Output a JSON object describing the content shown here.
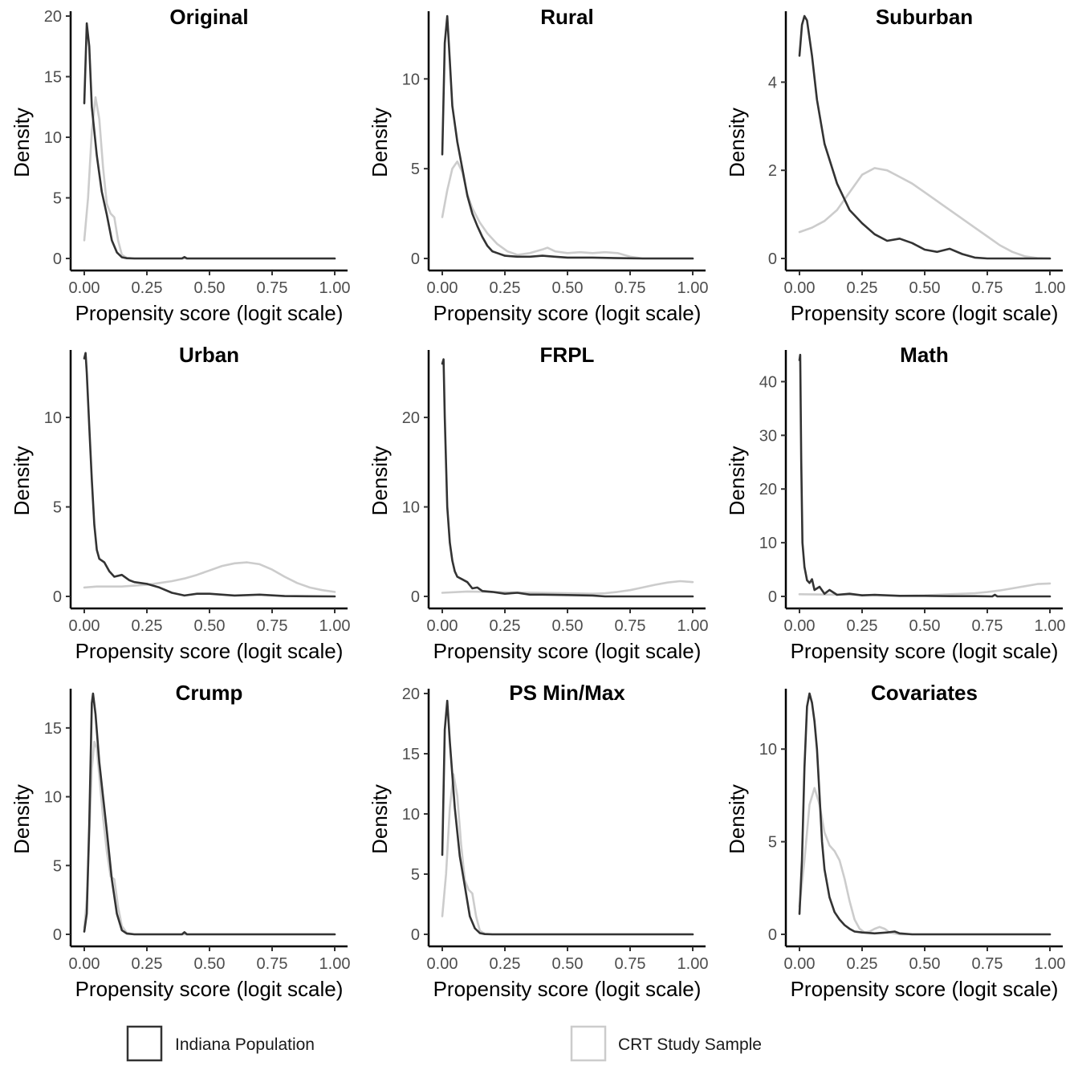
{
  "chart_data": [
    {
      "type": "line",
      "title": "Original",
      "xlabel": "Propensity score (logit scale)",
      "ylabel": "Density",
      "xlim": [
        0,
        1
      ],
      "ylim": [
        0,
        20
      ],
      "xticks": [
        "0.00",
        "0.25",
        "0.50",
        "0.75",
        "1.00"
      ],
      "yticks": [
        0,
        5,
        10,
        15,
        20
      ],
      "series": [
        {
          "name": "Indiana Population",
          "color": "#333333",
          "x": [
            0.0,
            0.01,
            0.02,
            0.03,
            0.05,
            0.07,
            0.09,
            0.11,
            0.13,
            0.15,
            0.17,
            0.2,
            0.3,
            0.39,
            0.4,
            0.41,
            0.5,
            1.0
          ],
          "y": [
            12.8,
            19.4,
            17.5,
            12.5,
            8.5,
            5.5,
            3.6,
            1.5,
            0.5,
            0.1,
            0.02,
            0.0,
            0.0,
            0.0,
            0.12,
            0.0,
            0.0,
            0.0
          ]
        },
        {
          "name": "CRT Study Sample",
          "color": "#cccccc",
          "x": [
            0.0,
            0.015,
            0.03,
            0.045,
            0.06,
            0.075,
            0.09,
            0.105,
            0.12,
            0.135,
            0.15,
            0.17,
            0.2,
            0.3,
            1.0
          ],
          "y": [
            1.5,
            5.0,
            10.5,
            13.3,
            11.5,
            7.5,
            4.5,
            3.7,
            3.4,
            1.5,
            0.3,
            0.05,
            0.0,
            0.0,
            0.0
          ]
        }
      ]
    },
    {
      "type": "line",
      "title": "Rural",
      "xlabel": "Propensity score (logit scale)",
      "ylabel": "Density",
      "xlim": [
        0,
        1
      ],
      "ylim": [
        0,
        13.5
      ],
      "xticks": [
        "0.00",
        "0.25",
        "0.50",
        "0.75",
        "1.00"
      ],
      "yticks": [
        0,
        5,
        10
      ],
      "series": [
        {
          "name": "Indiana Population",
          "color": "#333333",
          "x": [
            0.0,
            0.01,
            0.02,
            0.03,
            0.04,
            0.06,
            0.08,
            0.1,
            0.12,
            0.14,
            0.16,
            0.18,
            0.2,
            0.22,
            0.25,
            0.3,
            0.35,
            0.4,
            0.45,
            0.5,
            0.6,
            0.7,
            0.8,
            1.0
          ],
          "y": [
            5.8,
            12.0,
            13.5,
            11.0,
            8.5,
            6.5,
            5.0,
            3.5,
            2.5,
            1.8,
            1.2,
            0.7,
            0.4,
            0.3,
            0.15,
            0.1,
            0.1,
            0.15,
            0.1,
            0.05,
            0.05,
            0.02,
            0.0,
            0.0
          ]
        },
        {
          "name": "CRT Study Sample",
          "color": "#cccccc",
          "x": [
            0.0,
            0.02,
            0.04,
            0.06,
            0.08,
            0.1,
            0.12,
            0.15,
            0.18,
            0.22,
            0.26,
            0.3,
            0.35,
            0.4,
            0.42,
            0.45,
            0.5,
            0.55,
            0.6,
            0.65,
            0.7,
            0.75,
            0.8,
            1.0
          ],
          "y": [
            2.3,
            3.8,
            5.0,
            5.4,
            4.8,
            3.6,
            2.8,
            2.0,
            1.4,
            0.8,
            0.4,
            0.2,
            0.3,
            0.5,
            0.6,
            0.4,
            0.3,
            0.35,
            0.3,
            0.35,
            0.3,
            0.1,
            0.0,
            0.0
          ]
        }
      ]
    },
    {
      "type": "line",
      "title": "Suburban",
      "xlabel": "Propensity score (logit scale)",
      "ylabel": "Density",
      "xlim": [
        0,
        1
      ],
      "ylim": [
        0,
        5.5
      ],
      "xticks": [
        "0.00",
        "0.25",
        "0.50",
        "0.75",
        "1.00"
      ],
      "yticks": [
        0,
        2,
        4
      ],
      "series": [
        {
          "name": "Indiana Population",
          "color": "#333333",
          "x": [
            0.0,
            0.01,
            0.02,
            0.03,
            0.05,
            0.07,
            0.1,
            0.15,
            0.2,
            0.25,
            0.3,
            0.35,
            0.4,
            0.45,
            0.5,
            0.55,
            0.6,
            0.65,
            0.7,
            0.75,
            0.8,
            1.0
          ],
          "y": [
            4.6,
            5.3,
            5.5,
            5.4,
            4.6,
            3.6,
            2.6,
            1.7,
            1.1,
            0.8,
            0.55,
            0.4,
            0.45,
            0.35,
            0.2,
            0.15,
            0.22,
            0.1,
            0.02,
            0.0,
            0.0,
            0.0
          ]
        },
        {
          "name": "CRT Study Sample",
          "color": "#cccccc",
          "x": [
            0.0,
            0.05,
            0.1,
            0.15,
            0.2,
            0.25,
            0.3,
            0.35,
            0.4,
            0.45,
            0.5,
            0.55,
            0.6,
            0.65,
            0.7,
            0.75,
            0.8,
            0.85,
            0.9,
            0.95,
            1.0
          ],
          "y": [
            0.6,
            0.7,
            0.85,
            1.1,
            1.5,
            1.9,
            2.05,
            2.0,
            1.85,
            1.7,
            1.5,
            1.3,
            1.1,
            0.9,
            0.7,
            0.5,
            0.3,
            0.15,
            0.05,
            0.01,
            0.0
          ]
        }
      ]
    },
    {
      "type": "line",
      "title": "Urban",
      "xlabel": "Propensity score (logit scale)",
      "ylabel": "Density",
      "xlim": [
        0,
        1
      ],
      "ylim": [
        0,
        13.5
      ],
      "xticks": [
        "0.00",
        "0.25",
        "0.50",
        "0.75",
        "1.00"
      ],
      "yticks": [
        0,
        5,
        10
      ],
      "series": [
        {
          "name": "Indiana Population",
          "color": "#333333",
          "x": [
            0.0,
            0.005,
            0.01,
            0.02,
            0.03,
            0.04,
            0.05,
            0.06,
            0.08,
            0.1,
            0.12,
            0.15,
            0.18,
            0.2,
            0.25,
            0.3,
            0.35,
            0.4,
            0.45,
            0.5,
            0.6,
            0.7,
            0.8,
            1.0
          ],
          "y": [
            13.3,
            13.6,
            12.5,
            9.5,
            6.5,
            4.0,
            2.6,
            2.1,
            1.9,
            1.4,
            1.1,
            1.2,
            0.9,
            0.8,
            0.7,
            0.5,
            0.2,
            0.05,
            0.15,
            0.15,
            0.05,
            0.1,
            0.02,
            0.0
          ]
        },
        {
          "name": "CRT Study Sample",
          "color": "#cccccc",
          "x": [
            0.0,
            0.05,
            0.1,
            0.15,
            0.2,
            0.25,
            0.3,
            0.35,
            0.4,
            0.45,
            0.5,
            0.55,
            0.6,
            0.65,
            0.7,
            0.75,
            0.8,
            0.85,
            0.9,
            0.95,
            1.0
          ],
          "y": [
            0.5,
            0.55,
            0.55,
            0.55,
            0.6,
            0.65,
            0.75,
            0.85,
            1.0,
            1.2,
            1.45,
            1.7,
            1.85,
            1.9,
            1.8,
            1.5,
            1.1,
            0.75,
            0.5,
            0.35,
            0.25
          ]
        }
      ]
    },
    {
      "type": "line",
      "title": "FRPL",
      "xlabel": "Propensity score (logit scale)",
      "ylabel": "Density",
      "xlim": [
        0,
        1
      ],
      "ylim": [
        0,
        27
      ],
      "xticks": [
        "0.00",
        "0.25",
        "0.50",
        "0.75",
        "1.00"
      ],
      "yticks": [
        0,
        10,
        20
      ],
      "series": [
        {
          "name": "Indiana Population",
          "color": "#333333",
          "x": [
            0.0,
            0.005,
            0.01,
            0.02,
            0.03,
            0.04,
            0.05,
            0.06,
            0.08,
            0.1,
            0.12,
            0.14,
            0.16,
            0.2,
            0.25,
            0.3,
            0.35,
            0.4,
            0.5,
            0.6,
            0.65,
            1.0
          ],
          "y": [
            26.0,
            26.5,
            20.0,
            10.0,
            6.0,
            4.0,
            2.8,
            2.2,
            1.9,
            1.6,
            0.9,
            1.0,
            0.6,
            0.5,
            0.3,
            0.4,
            0.2,
            0.2,
            0.15,
            0.1,
            0.0,
            0.0
          ]
        },
        {
          "name": "CRT Study Sample",
          "color": "#cccccc",
          "x": [
            0.0,
            0.1,
            0.2,
            0.3,
            0.4,
            0.5,
            0.6,
            0.65,
            0.7,
            0.75,
            0.8,
            0.85,
            0.9,
            0.95,
            1.0
          ],
          "y": [
            0.4,
            0.55,
            0.5,
            0.45,
            0.4,
            0.35,
            0.3,
            0.35,
            0.5,
            0.7,
            1.0,
            1.3,
            1.55,
            1.7,
            1.6
          ]
        }
      ]
    },
    {
      "type": "line",
      "title": "Math",
      "xlabel": "Propensity score (logit scale)",
      "ylabel": "Density",
      "xlim": [
        0,
        1
      ],
      "ylim": [
        0,
        45
      ],
      "xticks": [
        "0.00",
        "0.25",
        "0.50",
        "0.75",
        "1.00"
      ],
      "yticks": [
        0,
        10,
        20,
        30,
        40
      ],
      "series": [
        {
          "name": "Indiana Population",
          "color": "#333333",
          "x": [
            0.0,
            0.003,
            0.007,
            0.012,
            0.02,
            0.03,
            0.04,
            0.05,
            0.06,
            0.08,
            0.1,
            0.12,
            0.15,
            0.2,
            0.25,
            0.3,
            0.4,
            0.5,
            0.6,
            0.7,
            0.77,
            0.78,
            0.79,
            1.0
          ],
          "y": [
            44.0,
            45.0,
            25.0,
            10.0,
            5.5,
            3.0,
            2.5,
            3.2,
            1.2,
            1.8,
            0.5,
            1.2,
            0.3,
            0.5,
            0.2,
            0.3,
            0.1,
            0.1,
            0.05,
            0.05,
            0.0,
            0.3,
            0.0,
            0.0
          ]
        },
        {
          "name": "CRT Study Sample",
          "color": "#cccccc",
          "x": [
            0.0,
            0.1,
            0.2,
            0.3,
            0.4,
            0.5,
            0.6,
            0.7,
            0.75,
            0.8,
            0.85,
            0.9,
            0.95,
            1.0
          ],
          "y": [
            0.4,
            0.35,
            0.3,
            0.2,
            0.1,
            0.2,
            0.4,
            0.6,
            0.8,
            1.1,
            1.5,
            1.9,
            2.3,
            2.4
          ]
        }
      ]
    },
    {
      "type": "line",
      "title": "Crump",
      "xlabel": "Propensity score (logit scale)",
      "ylabel": "Density",
      "xlim": [
        0,
        1
      ],
      "ylim": [
        0,
        17.5
      ],
      "xticks": [
        "0.00",
        "0.25",
        "0.50",
        "0.75",
        "1.00"
      ],
      "yticks": [
        0,
        5,
        10,
        15
      ],
      "series": [
        {
          "name": "Indiana Population",
          "color": "#333333",
          "x": [
            0.0,
            0.01,
            0.02,
            0.03,
            0.035,
            0.045,
            0.06,
            0.075,
            0.09,
            0.11,
            0.13,
            0.15,
            0.17,
            0.2,
            0.3,
            0.39,
            0.4,
            0.41,
            0.5,
            1.0
          ],
          "y": [
            0.2,
            1.5,
            8.0,
            16.8,
            17.5,
            16.0,
            12.5,
            10.0,
            7.5,
            4.0,
            1.5,
            0.3,
            0.05,
            0.0,
            0.0,
            0.0,
            0.15,
            0.0,
            0.0,
            0.0
          ]
        },
        {
          "name": "CRT Study Sample",
          "color": "#cccccc",
          "x": [
            0.0,
            0.01,
            0.02,
            0.03,
            0.04,
            0.05,
            0.06,
            0.075,
            0.09,
            0.105,
            0.12,
            0.135,
            0.15,
            0.17,
            0.2,
            1.0
          ],
          "y": [
            0.5,
            2.5,
            7.0,
            12.0,
            14.0,
            13.5,
            11.5,
            8.5,
            6.0,
            4.2,
            4.0,
            2.0,
            0.6,
            0.1,
            0.0,
            0.0
          ]
        }
      ]
    },
    {
      "type": "line",
      "title": "PS Min/Max",
      "xlabel": "Propensity score (logit scale)",
      "ylabel": "Density",
      "xlim": [
        0,
        1
      ],
      "ylim": [
        0,
        20
      ],
      "xticks": [
        "0.00",
        "0.25",
        "0.50",
        "0.75",
        "1.00"
      ],
      "yticks": [
        0,
        5,
        10,
        15,
        20
      ],
      "series": [
        {
          "name": "Indiana Population",
          "color": "#333333",
          "x": [
            0.0,
            0.01,
            0.02,
            0.03,
            0.05,
            0.07,
            0.09,
            0.11,
            0.13,
            0.15,
            0.17,
            0.2,
            0.3,
            1.0
          ],
          "y": [
            6.6,
            17.0,
            19.4,
            16.0,
            10.5,
            6.5,
            4.0,
            1.5,
            0.5,
            0.1,
            0.02,
            0.0,
            0.0,
            0.0
          ]
        },
        {
          "name": "CRT Study Sample",
          "color": "#cccccc",
          "x": [
            0.0,
            0.015,
            0.03,
            0.045,
            0.06,
            0.075,
            0.09,
            0.105,
            0.12,
            0.135,
            0.15,
            0.17,
            0.2,
            0.3,
            1.0
          ],
          "y": [
            1.5,
            5.0,
            10.5,
            13.3,
            11.5,
            7.5,
            4.5,
            3.7,
            3.4,
            1.5,
            0.3,
            0.05,
            0.0,
            0.0,
            0.0
          ]
        }
      ]
    },
    {
      "type": "line",
      "title": "Covariates",
      "xlabel": "Propensity score (logit scale)",
      "ylabel": "Density",
      "xlim": [
        0,
        1
      ],
      "ylim": [
        0,
        13
      ],
      "xticks": [
        "0.00",
        "0.25",
        "0.50",
        "0.75",
        "1.00"
      ],
      "yticks": [
        0,
        5,
        10
      ],
      "series": [
        {
          "name": "Indiana Population",
          "color": "#333333",
          "x": [
            0.0,
            0.01,
            0.02,
            0.03,
            0.04,
            0.05,
            0.06,
            0.07,
            0.08,
            0.09,
            0.1,
            0.12,
            0.14,
            0.16,
            0.18,
            0.2,
            0.22,
            0.25,
            0.3,
            0.35,
            0.38,
            0.4,
            0.45,
            1.0
          ],
          "y": [
            1.1,
            4.0,
            9.0,
            12.3,
            13.0,
            12.5,
            11.5,
            10.0,
            7.5,
            5.0,
            3.5,
            2.0,
            1.2,
            0.8,
            0.5,
            0.3,
            0.15,
            0.1,
            0.05,
            0.1,
            0.15,
            0.05,
            0.0,
            0.0
          ]
        },
        {
          "name": "CRT Study Sample",
          "color": "#cccccc",
          "x": [
            0.0,
            0.02,
            0.04,
            0.06,
            0.08,
            0.1,
            0.12,
            0.14,
            0.16,
            0.18,
            0.2,
            0.22,
            0.24,
            0.26,
            0.28,
            0.3,
            0.32,
            0.34,
            0.36,
            0.4,
            0.5,
            1.0
          ],
          "y": [
            1.5,
            4.0,
            7.0,
            7.9,
            7.0,
            5.5,
            4.8,
            4.5,
            4.0,
            3.0,
            1.8,
            0.8,
            0.3,
            0.1,
            0.15,
            0.3,
            0.4,
            0.3,
            0.1,
            0.0,
            0.0,
            0.0
          ]
        }
      ]
    }
  ],
  "legend": {
    "items": [
      {
        "label": "Indiana Population",
        "color": "#333333"
      },
      {
        "label": "CRT Study Sample",
        "color": "#cccccc"
      }
    ]
  }
}
